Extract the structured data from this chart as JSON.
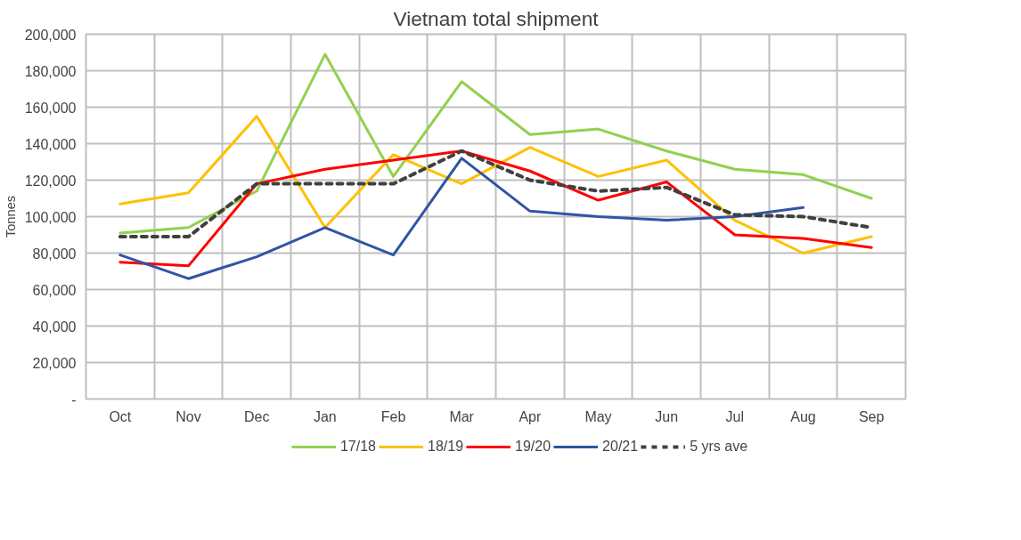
{
  "chart_data": {
    "type": "line",
    "title": "Vietnam total shipment",
    "ylabel": "Tonnes",
    "categories": [
      "Oct",
      "Nov",
      "Dec",
      "Jan",
      "Feb",
      "Mar",
      "Apr",
      "May",
      "Jun",
      "Jul",
      "Aug",
      "Sep"
    ],
    "series": [
      {
        "name": "17/18",
        "color": "#92d050",
        "values": [
          91000,
          94000,
          114000,
          189000,
          122000,
          174000,
          145000,
          148000,
          136000,
          126000,
          123000,
          110000
        ]
      },
      {
        "name": "18/19",
        "color": "#ffc000",
        "values": [
          107000,
          113000,
          155000,
          94000,
          134000,
          118000,
          138000,
          122000,
          131000,
          98000,
          80000,
          89000
        ]
      },
      {
        "name": "19/20",
        "color": "#ff0000",
        "values": [
          75000,
          73000,
          118000,
          126000,
          131000,
          136000,
          125000,
          109000,
          119000,
          90000,
          88000,
          83000
        ]
      },
      {
        "name": "20/21",
        "color": "#2f55a4",
        "values": [
          79000,
          66000,
          78000,
          94000,
          79000,
          132000,
          103000,
          100000,
          98000,
          100000,
          105000,
          null
        ]
      },
      {
        "name": "5 yrs ave",
        "color": "#404040",
        "line_style": "dashed",
        "values": [
          89000,
          89000,
          118000,
          118000,
          118000,
          136000,
          120000,
          114000,
          116000,
          101000,
          100000,
          94000
        ]
      }
    ],
    "ylim": [
      0,
      200000
    ],
    "yticks": [
      {
        "value": 0,
        "label": "-"
      },
      {
        "value": 20000,
        "label": "20,000"
      },
      {
        "value": 40000,
        "label": "40,000"
      },
      {
        "value": 60000,
        "label": "60,000"
      },
      {
        "value": 80000,
        "label": "80,000"
      },
      {
        "value": 100000,
        "label": "100,000"
      },
      {
        "value": 120000,
        "label": "120,000"
      },
      {
        "value": 140000,
        "label": "140,000"
      },
      {
        "value": 160000,
        "label": "160,000"
      },
      {
        "value": 180000,
        "label": "180,000"
      },
      {
        "value": 200000,
        "label": "200,000"
      }
    ],
    "grid": true,
    "legend": "bottom",
    "marker": "none",
    "line_style": "solid"
  }
}
